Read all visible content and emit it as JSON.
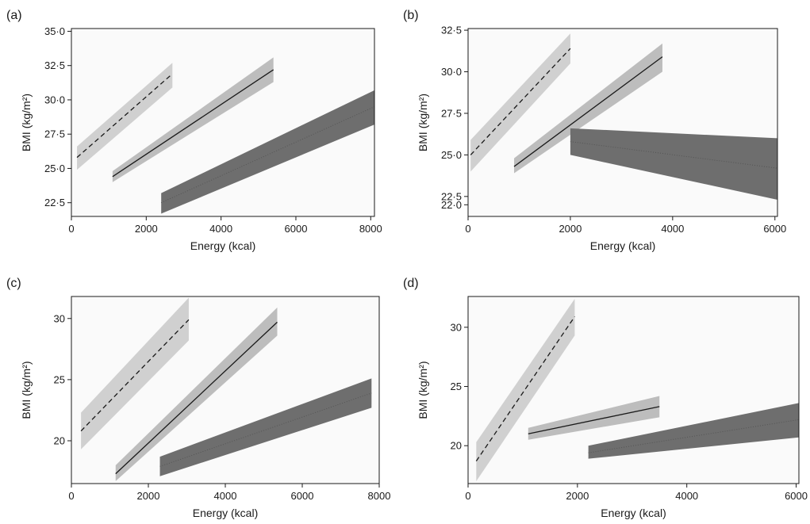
{
  "chart_data": [
    {
      "panel": "(a)",
      "type": "line",
      "xlabel": "Energy (kcal)",
      "ylabel": "BMI (kg/m²)",
      "xlim": [
        0,
        8100
      ],
      "ylim": [
        21.5,
        35.2
      ],
      "xticks": [
        0,
        2000,
        4000,
        6000,
        8000
      ],
      "yticks": [
        22.5,
        25.0,
        27.5,
        30.0,
        32.5,
        35.0
      ],
      "ytick_labels": [
        "22·5",
        "25·0",
        "27·5",
        "30·0",
        "32·5",
        "35·0"
      ],
      "series": [
        {
          "style": "dashed",
          "fill": "#d0d0d0",
          "x": [
            150,
            2700
          ],
          "y": [
            25.8,
            31.9
          ],
          "lower": [
            24.9,
            30.9
          ],
          "upper": [
            26.6,
            32.7
          ]
        },
        {
          "style": "solid",
          "fill": "#bdbdbd",
          "x": [
            1100,
            5400
          ],
          "y": [
            24.4,
            32.2
          ],
          "lower": [
            24.0,
            31.3
          ],
          "upper": [
            24.8,
            33.1
          ]
        },
        {
          "style": "dotted",
          "fill": "#6e6e6e",
          "x": [
            2400,
            8100
          ],
          "y": [
            22.5,
            29.5
          ],
          "lower": [
            21.7,
            28.2
          ],
          "upper": [
            23.2,
            30.7
          ]
        }
      ]
    },
    {
      "panel": "(b)",
      "type": "line",
      "xlabel": "Energy (kcal)",
      "ylabel": "BMI (kg/m²)",
      "xlim": [
        0,
        6050
      ],
      "ylim": [
        21.3,
        32.6
      ],
      "xticks": [
        0,
        2000,
        4000,
        6000
      ],
      "yticks": [
        22.0,
        22.5,
        25.0,
        27.5,
        30.0,
        32.5
      ],
      "ytick_labels": [
        "22·0",
        "22·5",
        "25·0",
        "27·5",
        "30·0",
        "32·5"
      ],
      "series": [
        {
          "style": "dashed",
          "fill": "#d0d0d0",
          "x": [
            50,
            2000
          ],
          "y": [
            25.0,
            31.4
          ],
          "lower": [
            24.0,
            30.5
          ],
          "upper": [
            25.9,
            32.3
          ]
        },
        {
          "style": "solid",
          "fill": "#bdbdbd",
          "x": [
            900,
            3800
          ],
          "y": [
            24.3,
            30.9
          ],
          "lower": [
            23.9,
            30.0
          ],
          "upper": [
            24.8,
            31.7
          ]
        },
        {
          "style": "dotted",
          "fill": "#6e6e6e",
          "x": [
            2000,
            6050
          ],
          "y": [
            25.8,
            24.2
          ],
          "lower": [
            25.0,
            22.3
          ],
          "upper": [
            26.6,
            26.0
          ]
        }
      ]
    },
    {
      "panel": "(c)",
      "type": "line",
      "xlabel": "Energy (kcal)",
      "ylabel": "BMI (kg/m²)",
      "xlim": [
        0,
        8000
      ],
      "ylim": [
        16.5,
        31.8
      ],
      "xticks": [
        0,
        2000,
        4000,
        6000,
        8000
      ],
      "yticks": [
        20,
        25,
        30
      ],
      "ytick_labels": [
        "20",
        "25",
        "30"
      ],
      "series": [
        {
          "style": "dashed",
          "fill": "#d0d0d0",
          "x": [
            250,
            3050
          ],
          "y": [
            20.8,
            29.9
          ],
          "lower": [
            19.3,
            28.2
          ],
          "upper": [
            22.3,
            31.7
          ]
        },
        {
          "style": "solid",
          "fill": "#bdbdbd",
          "x": [
            1150,
            5350
          ],
          "y": [
            17.3,
            29.7
          ],
          "lower": [
            16.7,
            28.6
          ],
          "upper": [
            18.0,
            30.9
          ]
        },
        {
          "style": "dotted",
          "fill": "#6e6e6e",
          "x": [
            2300,
            7800
          ],
          "y": [
            17.9,
            23.9
          ],
          "lower": [
            17.1,
            22.7
          ],
          "upper": [
            18.7,
            25.1
          ]
        }
      ]
    },
    {
      "panel": "(d)",
      "type": "line",
      "xlabel": "Energy (kcal)",
      "ylabel": "BMI (kg/m²)",
      "xlim": [
        0,
        6050
      ],
      "ylim": [
        16.8,
        32.6
      ],
      "xticks": [
        0,
        2000,
        4000,
        6000
      ],
      "yticks": [
        20,
        25,
        30
      ],
      "ytick_labels": [
        "20",
        "25",
        "30"
      ],
      "series": [
        {
          "style": "dashed",
          "fill": "#d0d0d0",
          "x": [
            150,
            1950
          ],
          "y": [
            18.7,
            30.9
          ],
          "lower": [
            17.0,
            29.3
          ],
          "upper": [
            20.3,
            32.4
          ]
        },
        {
          "style": "solid",
          "fill": "#bdbdbd",
          "x": [
            1100,
            3500
          ],
          "y": [
            21.0,
            23.3
          ],
          "lower": [
            20.5,
            22.4
          ],
          "upper": [
            21.5,
            24.2
          ]
        },
        {
          "style": "dotted",
          "fill": "#6e6e6e",
          "x": [
            2200,
            6050
          ],
          "y": [
            19.4,
            22.2
          ],
          "lower": [
            18.9,
            20.7
          ],
          "upper": [
            20.0,
            23.6
          ]
        }
      ]
    }
  ]
}
